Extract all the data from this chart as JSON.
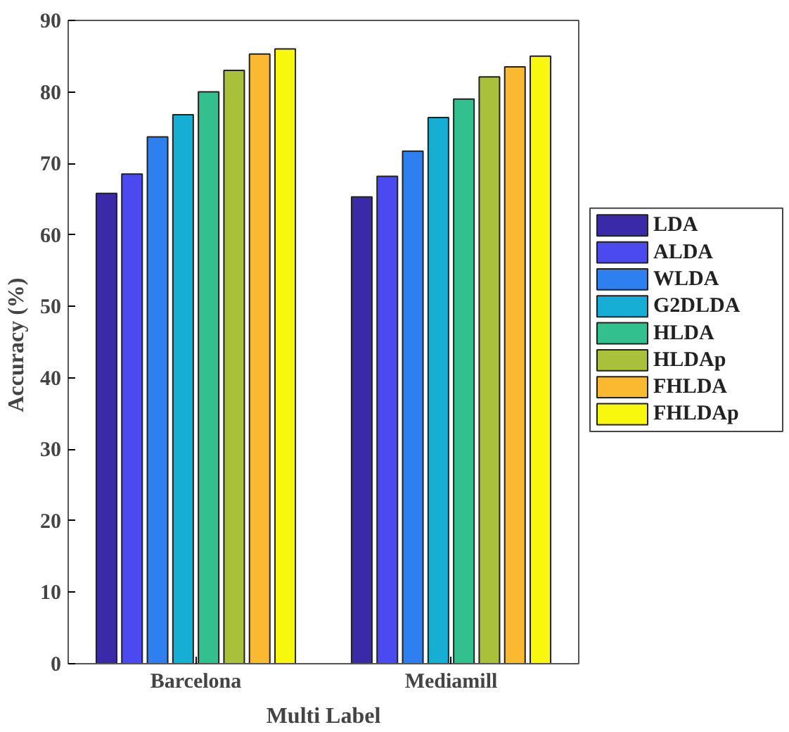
{
  "chart_data": {
    "type": "bar",
    "xlabel": "Multi Label",
    "ylabel": "Accuracy  (%)",
    "categories": [
      "Barcelona",
      "Mediamill"
    ],
    "series": [
      {
        "name": "LDA",
        "color": "#3a2aa8",
        "values": [
          65.8,
          65.3
        ]
      },
      {
        "name": "ALDA",
        "color": "#4a4af0",
        "values": [
          68.5,
          68.2
        ]
      },
      {
        "name": "WLDA",
        "color": "#2e7ff0",
        "values": [
          73.7,
          71.7
        ]
      },
      {
        "name": "G2DLDA",
        "color": "#16aed4",
        "values": [
          76.8,
          76.4
        ]
      },
      {
        "name": "HLDA",
        "color": "#33c08f",
        "values": [
          80.0,
          79.0
        ]
      },
      {
        "name": "HLDAp",
        "color": "#a8c03a",
        "values": [
          83.0,
          82.1
        ]
      },
      {
        "name": "FHLDA",
        "color": "#fbb931",
        "values": [
          85.3,
          83.5
        ]
      },
      {
        "name": "FHLDAp",
        "color": "#f8f80f",
        "values": [
          86.0,
          85.0
        ]
      }
    ],
    "ylim": [
      0,
      90
    ],
    "yticks": [
      0,
      10,
      20,
      30,
      40,
      50,
      60,
      70,
      80,
      90
    ],
    "legend": "right",
    "grid": false
  }
}
